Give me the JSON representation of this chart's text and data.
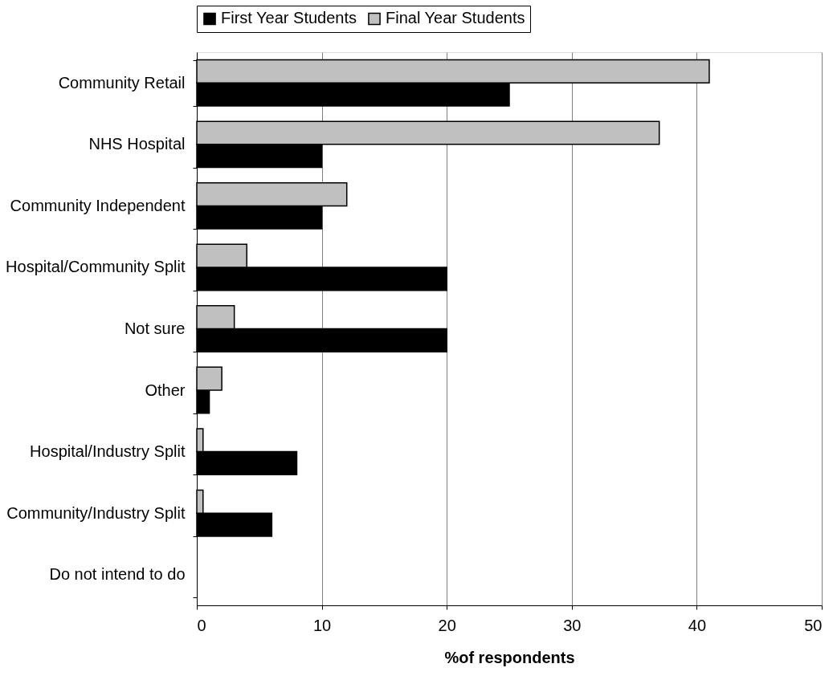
{
  "chart_data": {
    "type": "bar",
    "orientation": "horizontal",
    "xlabel": "%of respondents",
    "categories": [
      "Community Retail",
      "NHS Hospital",
      "Community Independent",
      "Hospital/Community Split",
      "Not sure",
      "Other",
      "Hospital/Industry Split",
      "Community/Industry Split",
      "Do not intend to do"
    ],
    "series": [
      {
        "name": "First Year Students",
        "color": "#000000",
        "values": [
          25,
          10,
          10,
          20,
          20,
          1,
          8,
          6,
          0
        ]
      },
      {
        "name": "Final Year Students",
        "color": "#c0c0c0",
        "values": [
          41,
          37,
          12,
          4,
          3,
          2,
          0.5,
          0.5,
          0
        ]
      }
    ],
    "xlim": [
      0,
      50
    ],
    "xticks": [
      0,
      10,
      20,
      30,
      40,
      50
    ],
    "grid": "x",
    "legend": "top"
  }
}
